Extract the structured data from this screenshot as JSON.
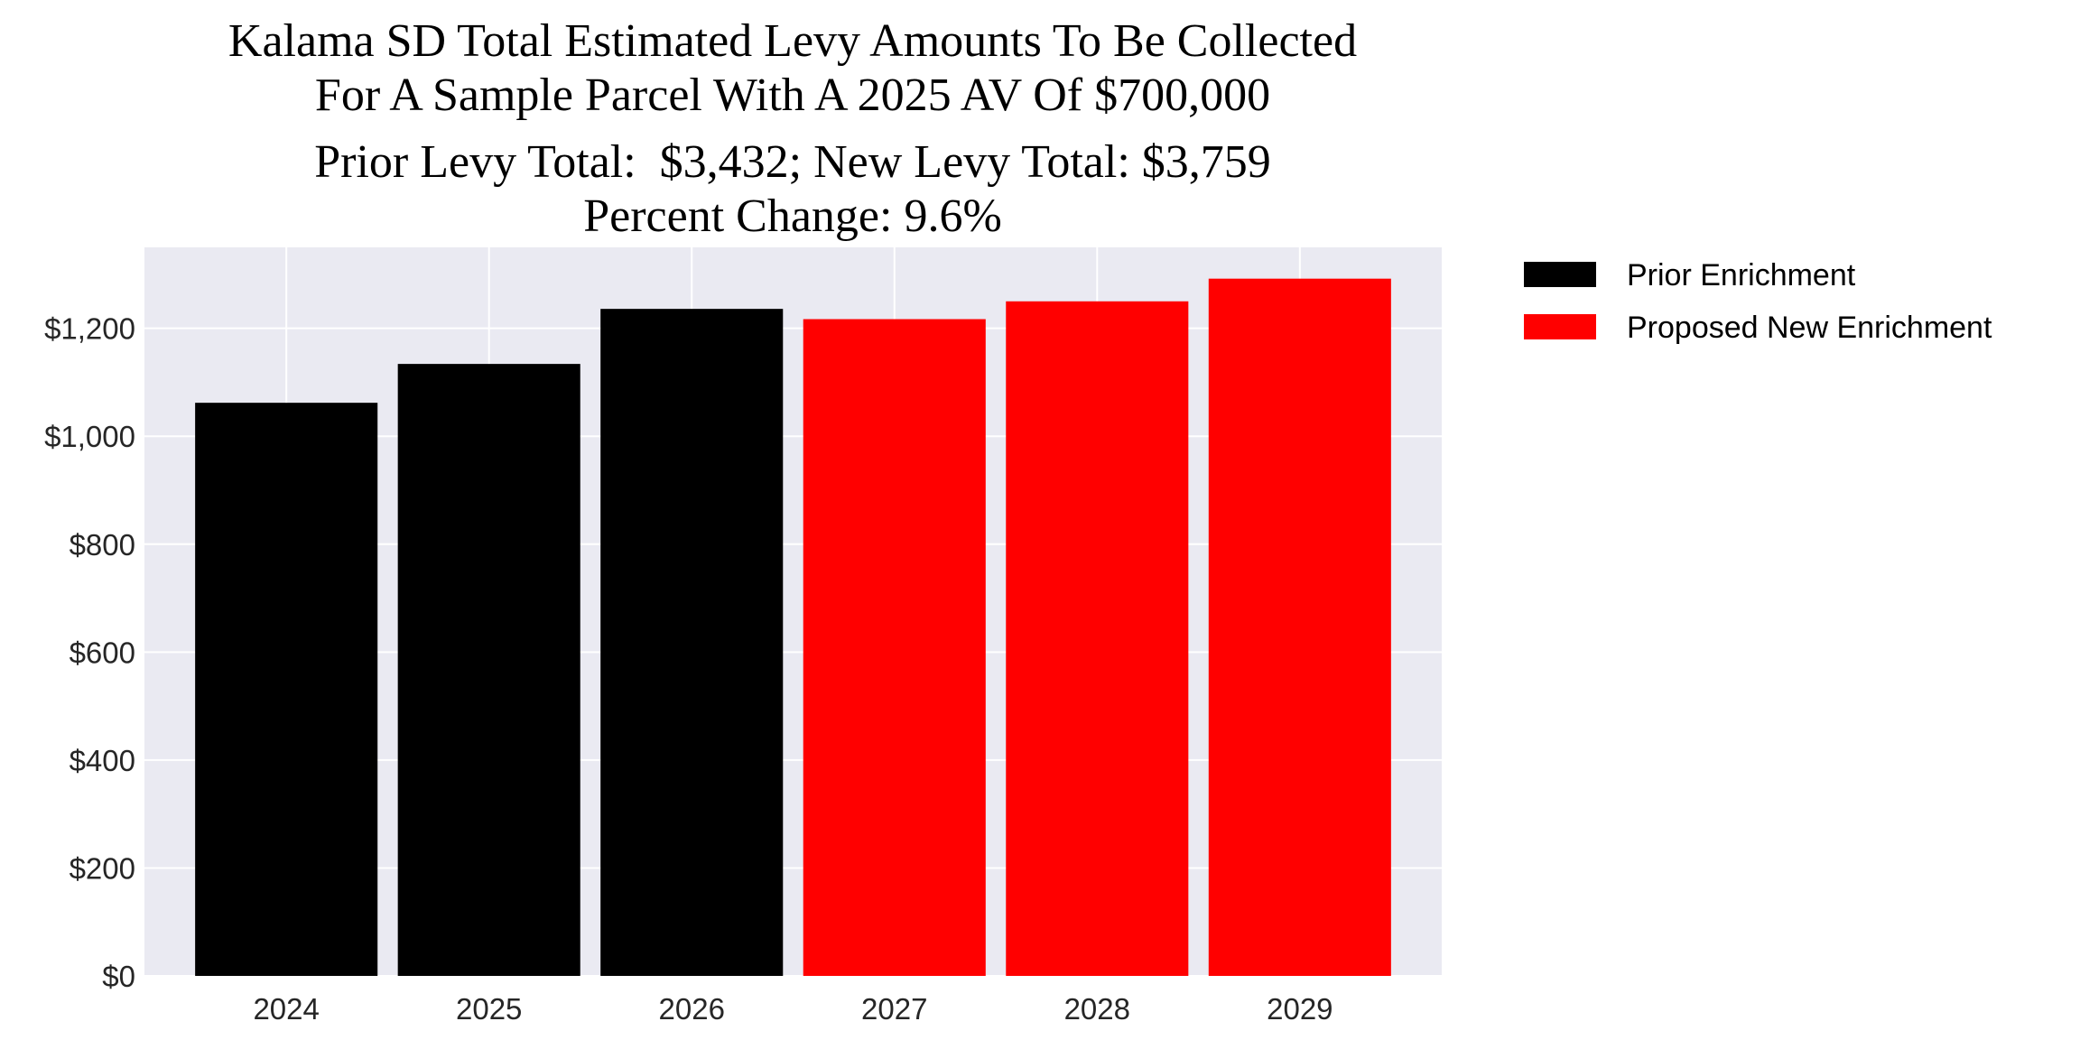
{
  "chart_data": {
    "type": "bar",
    "title_lines": [
      "Kalama SD Total Estimated Levy Amounts To Be Collected",
      "For A Sample Parcel With A 2025 AV Of $700,000",
      "Prior Levy Total:  $3,432; New Levy Total: $3,759",
      "Percent Change: 9.6%"
    ],
    "categories": [
      "2024",
      "2025",
      "2026",
      "2027",
      "2028",
      "2029"
    ],
    "values": [
      1062,
      1134,
      1236,
      1217,
      1250,
      1292
    ],
    "bar_series": [
      "Prior Enrichment",
      "Prior Enrichment",
      "Prior Enrichment",
      "Proposed New Enrichment",
      "Proposed New Enrichment",
      "Proposed New Enrichment"
    ],
    "series": [
      {
        "name": "Prior Enrichment",
        "color": "#000000"
      },
      {
        "name": "Proposed New Enrichment",
        "color": "#ff0000"
      }
    ],
    "xlabel": "",
    "ylabel": "",
    "ylim": [
      0,
      1350
    ],
    "yticks": [
      0,
      200,
      400,
      600,
      800,
      1000,
      1200
    ],
    "ytick_labels": [
      "$0",
      "$200",
      "$400",
      "$600",
      "$800",
      "$1,000",
      "$1,200"
    ],
    "grid": true,
    "background": "#eaeaf2",
    "legend_placement": "outside-top-right"
  }
}
